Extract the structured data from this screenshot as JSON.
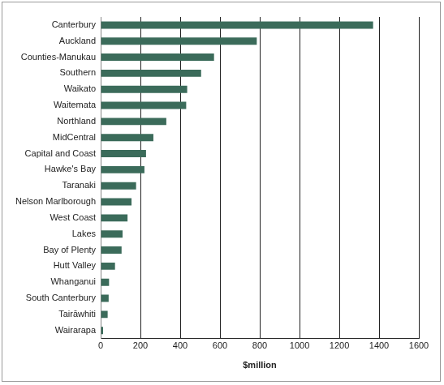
{
  "chart_data": {
    "type": "bar",
    "orientation": "horizontal",
    "categories": [
      "Canterbury",
      "Auckland",
      "Counties-Manukau",
      "Southern",
      "Waikato",
      "Waitemata",
      "Northland",
      "MidCentral",
      "Capital and Coast",
      "Hawke's Bay",
      "Taranaki",
      "Nelson Marlborough",
      "West Coast",
      "Lakes",
      "Bay of Plenty",
      "Hutt Valley",
      "Whanganui",
      "South Canterbury",
      "Tairāwhiti",
      "Wairarapa"
    ],
    "values": [
      1370,
      785,
      570,
      505,
      435,
      430,
      330,
      265,
      228,
      220,
      178,
      155,
      135,
      110,
      105,
      72,
      42,
      40,
      35,
      12
    ],
    "color": "#3b6b5a",
    "x_label": "$million",
    "xlim": [
      0,
      1600
    ],
    "xticks": [
      0,
      200,
      400,
      600,
      800,
      1000,
      1200,
      1400,
      1600
    ],
    "grid": true
  }
}
